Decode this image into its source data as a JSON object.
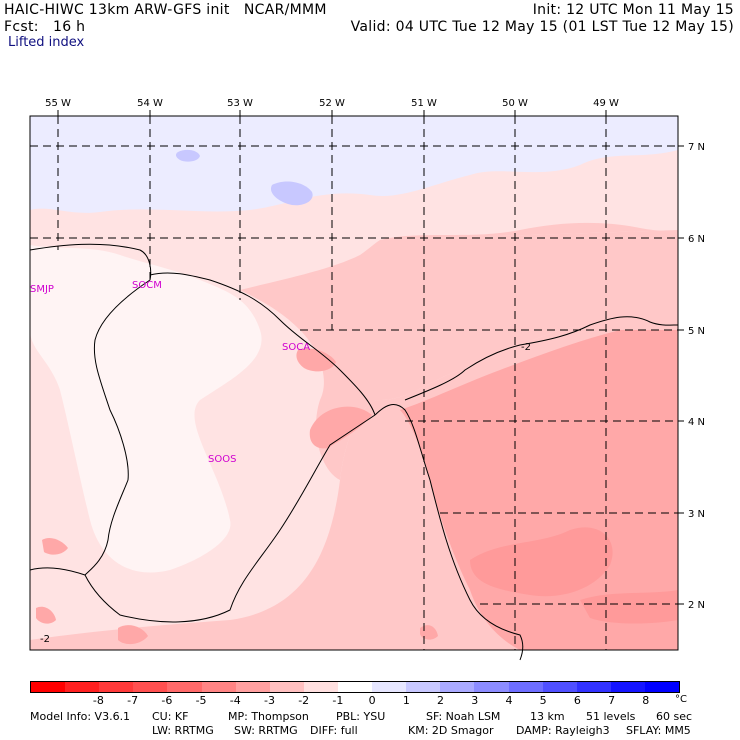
{
  "header": {
    "model": "HAIC-HIWC 13km ARW-GFS init",
    "org": "NCAR/MMM",
    "fcst_label": "Fcst:",
    "fcst_value": "16 h",
    "init": "Init: 12 UTC Mon 11 May 15",
    "valid": "Valid: 04 UTC Tue 12 May 15 (01 LST Tue 12 May 15)"
  },
  "field": "Lifted index",
  "map": {
    "lon_labels": [
      "55 W",
      "54 W",
      "53 W",
      "52 W",
      "51 W",
      "50 W",
      "49 W"
    ],
    "lat_labels": [
      "7 N",
      "6 N",
      "5 N",
      "4 N",
      "3 N",
      "2 N"
    ],
    "stations": [
      "SMJP",
      "SOCM",
      "SOCA",
      "SOOS"
    ],
    "contour_labels": [
      "-2",
      "-2"
    ]
  },
  "colorbar": {
    "colors": [
      "#ff0000",
      "#ff2020",
      "#ff3a3a",
      "#ff5050",
      "#ff6a6a",
      "#ff8484",
      "#ffa0a0",
      "#ffc0c0",
      "#ffe0e0",
      "#ffffff",
      "#e6e6ff",
      "#c8c8ff",
      "#aaaaff",
      "#8c8cff",
      "#6e6eff",
      "#5050ff",
      "#3232ff",
      "#1414ff",
      "#0000ff"
    ],
    "labels": [
      "-8",
      "-7",
      "-6",
      "-5",
      "-4",
      "-3",
      "-2",
      "-1",
      "0",
      "1",
      "2",
      "3",
      "4",
      "5",
      "6",
      "7",
      "8"
    ],
    "unit": "°C"
  },
  "footer": {
    "line1": [
      "Model Info: V3.6.1",
      "CU: KF",
      "MP: Thompson",
      "PBL: YSU",
      "SF: Noah LSM",
      "13 km",
      "51 levels",
      "60 sec"
    ],
    "line2": [
      "LW: RRTMG",
      "SW: RRTMG",
      "DIFF: full",
      "KM: 2D Smagor",
      "DAMP: Rayleigh3",
      "SFLAY: MM5"
    ]
  }
}
